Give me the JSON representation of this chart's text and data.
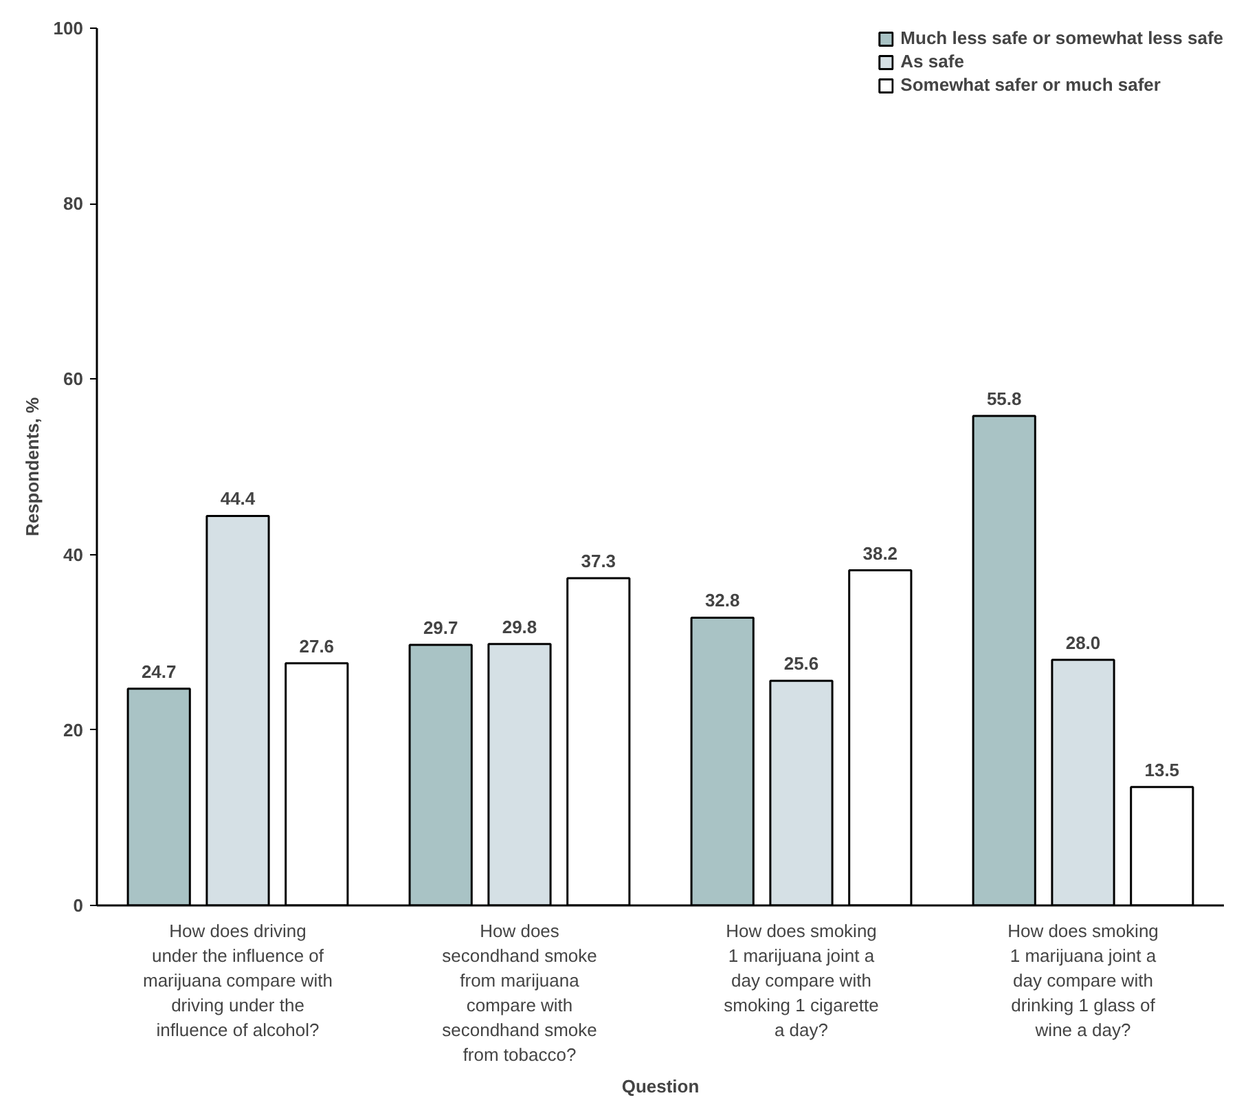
{
  "chart_data": {
    "type": "bar",
    "xlabel": "Question",
    "ylabel": "Respondents, %",
    "categories": [
      "How does driving\nunder the influence of\nmarijuana compare with\ndriving under the\ninfluence of alcohol?",
      "How does\nsecondhand smoke\nfrom marijuana\ncompare with\nsecondhand smoke\nfrom tobacco?",
      "How does smoking\n1 marijuana joint a\nday compare with\nsmoking 1 cigarette\na day?",
      "How does smoking\n1 marijuana joint a\nday compare with\ndrinking 1 glass of\nwine a day?"
    ],
    "series": [
      {
        "name": "Much less safe or somewhat less safe",
        "color": "#a9c3c5",
        "values": [
          24.7,
          29.7,
          32.8,
          55.8
        ],
        "value_labels": [
          "24.7",
          "29.7",
          "32.8",
          "55.8"
        ]
      },
      {
        "name": "As safe",
        "color": "#d5e0e5",
        "values": [
          44.4,
          29.8,
          25.6,
          28.0
        ],
        "value_labels": [
          "44.4",
          "29.8",
          "25.6",
          "28.0"
        ]
      },
      {
        "name": "Somewhat safer or much safer",
        "color": "#ffffff",
        "values": [
          27.6,
          37.3,
          38.2,
          13.5
        ],
        "value_labels": [
          "27.6",
          "37.3",
          "38.2",
          "13.5"
        ]
      }
    ],
    "ylim": [
      0,
      100
    ],
    "yticks": [
      0,
      20,
      40,
      60,
      80,
      100
    ],
    "grid": false,
    "legend": "top right"
  }
}
